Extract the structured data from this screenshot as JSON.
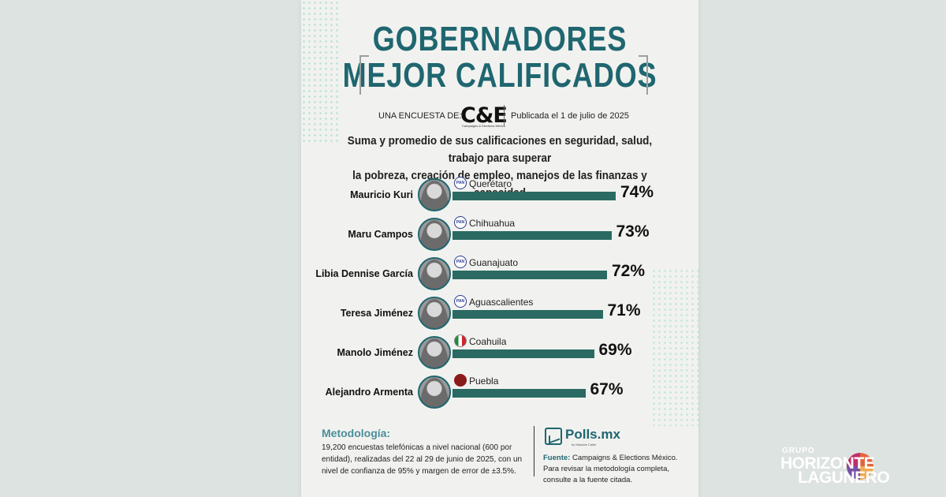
{
  "header": {
    "title_line1": "GOBERNADORES",
    "title_line2": "MEJOR CALIFICADOS",
    "byline_prefix": "UNA ENCUESTA DE:",
    "logo_text": "C&E",
    "logo_subtext": "Campaigns & Elections México",
    "published": "Publicada el 1 de julio de 2025",
    "subtitle_line1": "Suma y promedio de sus calificaciones en seguridad, salud, trabajo para superar",
    "subtitle_line2": "la pobreza, creación de empleo, manejos de las finanzas y capacidad"
  },
  "chart_data": {
    "type": "bar",
    "orientation": "horizontal",
    "categories": [
      "Mauricio Kuri",
      "Maru Campos",
      "Libia Dennise García",
      "Teresa Jiménez",
      "Manolo Jiménez",
      "Alejandro Armenta"
    ],
    "values": [
      74,
      73,
      72,
      71,
      69,
      67
    ],
    "value_labels": [
      "74%",
      "73%",
      "72%",
      "71%",
      "69%",
      "67%"
    ],
    "states": [
      "Querétaro",
      "Chihuahua",
      "Guanajuato",
      "Aguascalientes",
      "Coahuila",
      "Puebla"
    ],
    "parties": [
      "PAN",
      "PAN",
      "PAN",
      "PAN",
      "PRI",
      "MORENA"
    ],
    "party_badge_text": [
      "PAN",
      "PAN",
      "PAN",
      "PAN",
      "",
      ""
    ],
    "bar_color": "#2a6a62",
    "title": "GOBERNADORES MEJOR CALIFICADOS"
  },
  "methodology": {
    "title": "Metodología:",
    "text": "19,200 encuestas telefónicas a nivel nacional (600 por entidad), realizadas del 22 al 29 de junio de 2025, con un nivel de confianza de 95% y margen de error de ±3.5%."
  },
  "source": {
    "brand": "Polls.mx",
    "brand_sub": "by Massive Caller",
    "label": "Fuente:",
    "text": "Campaigns & Elections México. Para revisar la metodología completa, consulte a la fuente citada."
  },
  "watermark": {
    "line1": "GRUPO",
    "line2": "HORIZONTE",
    "line3": "LAGUNERO"
  },
  "colors": {
    "accent": "#1f6670",
    "bar": "#2a6a62",
    "background": "#dde3e0",
    "poster": "#f1f2ef"
  }
}
